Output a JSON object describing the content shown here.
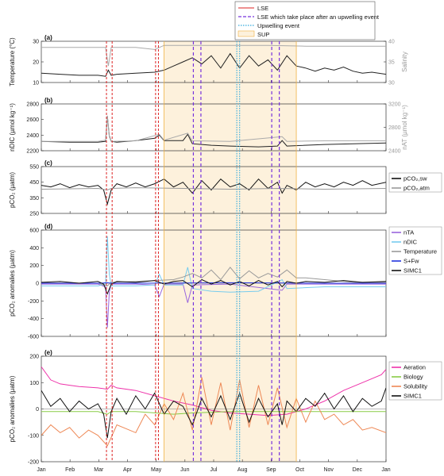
{
  "chart_data": [
    {
      "type": "line",
      "panel_label": "(a)",
      "ylabel": "Temperature (°C)",
      "y2label": "Salinity",
      "ylim": [
        10,
        30
      ],
      "yticks": [
        10,
        20,
        30
      ],
      "y2lim": [
        30,
        40
      ],
      "y2ticks": [
        30,
        35,
        40
      ],
      "series": [
        {
          "axis": "left",
          "color": "#222222",
          "x": [
            0,
            20,
            40,
            60,
            68,
            71,
            74,
            80,
            100,
            120,
            130,
            140,
            150,
            160,
            170,
            180,
            190,
            200,
            210,
            220,
            230,
            240,
            250,
            260,
            270,
            280,
            290,
            300,
            310,
            320,
            330,
            340,
            350,
            365
          ],
          "values": [
            14.5,
            14,
            13.5,
            13.5,
            13,
            16,
            13.5,
            14,
            14.5,
            15,
            16,
            18,
            20,
            22,
            19,
            23,
            17,
            24,
            17,
            23,
            18,
            21,
            16,
            23,
            18,
            17,
            15.5,
            17,
            16,
            17.5,
            15.5,
            14.5,
            15,
            14
          ]
        },
        {
          "axis": "right",
          "color": "#aaaaaa",
          "x": [
            0,
            60,
            68,
            71,
            74,
            100,
            120,
            130,
            150,
            200,
            240,
            280,
            320,
            365
          ],
          "values": [
            38.5,
            38.5,
            38.5,
            34,
            38.5,
            38.5,
            38,
            39,
            39,
            39,
            39,
            38.8,
            38.8,
            38.8
          ]
        }
      ]
    },
    {
      "type": "line",
      "panel_label": "(b)",
      "ylabel": "nDIC (µmol kg⁻¹)",
      "y2label": "nAT (µmol kg⁻¹)",
      "ylim": [
        2200,
        2800
      ],
      "yticks": [
        2200,
        2400,
        2600,
        2800
      ],
      "y2lim": [
        2400,
        3200
      ],
      "y2ticks": [
        2400,
        2800,
        3200
      ],
      "series": [
        {
          "axis": "left",
          "color": "#222222",
          "x": [
            0,
            30,
            60,
            68,
            70,
            72,
            74,
            80,
            100,
            120,
            125,
            130,
            150,
            155,
            160,
            180,
            200,
            230,
            250,
            255,
            260,
            300,
            330,
            365
          ],
          "values": [
            2320,
            2310,
            2310,
            2320,
            2640,
            2390,
            2320,
            2310,
            2330,
            2360,
            2400,
            2330,
            2330,
            2410,
            2290,
            2270,
            2260,
            2250,
            2260,
            2330,
            2260,
            2280,
            2290,
            2300
          ]
        },
        {
          "axis": "right",
          "color": "#aaaaaa",
          "x": [
            0,
            60,
            68,
            70,
            72,
            74,
            100,
            125,
            130,
            155,
            160,
            200,
            255,
            260,
            300,
            365
          ],
          "values": [
            2560,
            2560,
            2580,
            3000,
            2640,
            2560,
            2570,
            2680,
            2580,
            2700,
            2570,
            2560,
            2640,
            2560,
            2570,
            2570
          ]
        }
      ]
    },
    {
      "type": "line",
      "panel_label": "(c)",
      "ylabel": "pCO₂ (µatm)",
      "ylim": [
        250,
        550
      ],
      "yticks": [
        250,
        350,
        450,
        550
      ],
      "legend": [
        "pCO₂,sw",
        "pCO₂,atm"
      ],
      "series": [
        {
          "name": "pCO₂,sw",
          "color": "#111111",
          "x": [
            0,
            10,
            20,
            30,
            40,
            50,
            60,
            66,
            70,
            74,
            80,
            90,
            100,
            110,
            120,
            130,
            140,
            150,
            160,
            170,
            180,
            190,
            200,
            210,
            220,
            230,
            240,
            250,
            255,
            260,
            270,
            280,
            290,
            300,
            310,
            320,
            330,
            340,
            350,
            365
          ],
          "values": [
            430,
            420,
            440,
            415,
            435,
            420,
            430,
            400,
            310,
            400,
            440,
            420,
            445,
            420,
            440,
            470,
            420,
            450,
            380,
            460,
            400,
            470,
            420,
            440,
            400,
            470,
            410,
            450,
            380,
            430,
            400,
            450,
            420,
            440,
            420,
            450,
            430,
            460,
            430,
            450
          ]
        },
        {
          "name": "pCO₂,atm",
          "color": "#999999",
          "x": [
            0,
            60,
            70,
            74,
            100,
            150,
            200,
            250,
            300,
            365
          ],
          "values": [
            405,
            410,
            400,
            410,
            415,
            410,
            405,
            410,
            405,
            410
          ]
        }
      ]
    },
    {
      "type": "line",
      "panel_label": "(d)",
      "ylabel": "pCO₂ anomalies (µatm)",
      "ylim": [
        -600,
        600
      ],
      "yticks": [
        -600,
        -400,
        -200,
        0,
        200,
        400,
        600
      ],
      "legend": [
        "nTA",
        "nDIC",
        "Temperature",
        "S+Fw",
        "SIMC1"
      ],
      "series": [
        {
          "name": "nTA",
          "color": "#9966dd",
          "x": [
            0,
            60,
            68,
            70,
            72,
            74,
            100,
            120,
            125,
            130,
            150,
            155,
            160,
            200,
            255,
            260,
            365
          ],
          "values": [
            -10,
            -10,
            -40,
            -500,
            -100,
            -10,
            -10,
            -20,
            -150,
            -10,
            -10,
            -220,
            -20,
            -10,
            -80,
            -10,
            -10
          ]
        },
        {
          "name": "nDIC",
          "color": "#77ccee",
          "x": [
            0,
            60,
            68,
            70,
            72,
            74,
            100,
            120,
            125,
            130,
            150,
            155,
            160,
            180,
            200,
            230,
            255,
            260,
            300,
            365
          ],
          "values": [
            -30,
            -30,
            -10,
            530,
            100,
            -30,
            -30,
            -20,
            100,
            -20,
            -20,
            180,
            -60,
            -90,
            -100,
            -90,
            40,
            -60,
            -40,
            -40
          ]
        },
        {
          "name": "Temperature",
          "color": "#999999",
          "x": [
            0,
            60,
            70,
            74,
            100,
            140,
            150,
            160,
            170,
            180,
            190,
            200,
            210,
            220,
            230,
            240,
            250,
            260,
            270,
            280,
            300,
            330,
            365
          ],
          "values": [
            5,
            0,
            -30,
            10,
            20,
            40,
            70,
            110,
            60,
            150,
            40,
            180,
            50,
            140,
            60,
            110,
            70,
            150,
            60,
            60,
            40,
            10,
            10
          ]
        },
        {
          "name": "S+Fw",
          "color": "#2233dd",
          "x": [
            0,
            60,
            70,
            74,
            100,
            200,
            300,
            365
          ],
          "values": [
            0,
            0,
            5,
            0,
            0,
            5,
            0,
            0
          ]
        },
        {
          "name": "SIMC1",
          "color": "#111111",
          "x": [
            0,
            20,
            40,
            60,
            66,
            70,
            74,
            80,
            100,
            120,
            130,
            140,
            150,
            160,
            170,
            180,
            190,
            200,
            210,
            220,
            230,
            240,
            250,
            255,
            260,
            270,
            280,
            300,
            320,
            340,
            365
          ],
          "values": [
            10,
            20,
            0,
            20,
            -10,
            -120,
            -10,
            20,
            10,
            30,
            -10,
            20,
            30,
            -40,
            40,
            -10,
            30,
            -20,
            20,
            -30,
            30,
            -20,
            20,
            -40,
            20,
            0,
            20,
            10,
            30,
            10,
            20
          ]
        }
      ]
    },
    {
      "type": "line",
      "panel_label": "(e)",
      "ylabel": "pCO₂ anomalies (µatm)",
      "ylim": [
        -200,
        200
      ],
      "yticks": [
        -200,
        -100,
        0,
        100,
        200
      ],
      "legend": [
        "Aeration",
        "Biology",
        "Solubility",
        "SIMC1"
      ],
      "series": [
        {
          "name": "Aeration",
          "color": "#ee33aa",
          "x": [
            0,
            10,
            20,
            30,
            40,
            60,
            70,
            74,
            80,
            100,
            120,
            140,
            160,
            180,
            200,
            220,
            240,
            260,
            280,
            300,
            320,
            340,
            360,
            365
          ],
          "values": [
            160,
            110,
            95,
            90,
            85,
            80,
            75,
            90,
            80,
            70,
            50,
            30,
            15,
            -5,
            -15,
            -20,
            -25,
            -20,
            0,
            30,
            70,
            100,
            130,
            150
          ]
        },
        {
          "name": "Biology",
          "color": "#88cc44",
          "x": [
            0,
            60,
            70,
            74,
            100,
            140,
            160,
            200,
            260,
            300,
            365
          ],
          "values": [
            -10,
            -10,
            -20,
            -10,
            -10,
            -20,
            -15,
            -10,
            -10,
            -10,
            -10
          ]
        },
        {
          "name": "Solubility",
          "color": "#ee8855",
          "x": [
            0,
            10,
            20,
            30,
            40,
            50,
            60,
            70,
            80,
            100,
            110,
            120,
            130,
            140,
            150,
            160,
            170,
            180,
            190,
            200,
            210,
            220,
            230,
            240,
            250,
            260,
            270,
            280,
            290,
            300,
            310,
            320,
            330,
            340,
            350,
            365
          ],
          "values": [
            -100,
            -60,
            -90,
            -70,
            -110,
            -80,
            -100,
            -140,
            -60,
            -90,
            -20,
            -60,
            20,
            -40,
            60,
            -80,
            120,
            -60,
            100,
            -80,
            110,
            -70,
            90,
            -60,
            80,
            -70,
            40,
            -50,
            30,
            -40,
            -20,
            -60,
            -40,
            -80,
            -70,
            -90
          ]
        },
        {
          "name": "SIMC1",
          "color": "#111111",
          "x": [
            0,
            10,
            20,
            30,
            40,
            50,
            60,
            66,
            70,
            74,
            80,
            90,
            100,
            110,
            120,
            130,
            140,
            150,
            160,
            170,
            180,
            190,
            200,
            210,
            220,
            230,
            240,
            250,
            255,
            260,
            270,
            280,
            290,
            300,
            310,
            320,
            330,
            340,
            350,
            360,
            365
          ],
          "values": [
            70,
            10,
            40,
            -10,
            30,
            0,
            20,
            -20,
            -110,
            -10,
            40,
            -20,
            50,
            0,
            60,
            -20,
            30,
            10,
            -60,
            40,
            -30,
            50,
            -40,
            60,
            -50,
            40,
            -30,
            20,
            -60,
            30,
            -10,
            40,
            10,
            60,
            0,
            50,
            -10,
            40,
            10,
            30,
            80
          ]
        }
      ]
    }
  ],
  "shared": {
    "months": [
      "Jan",
      "Feb",
      "Mar",
      "Apr",
      "May",
      "Jun",
      "Jul",
      "Aug",
      "Sep",
      "Oct",
      "Nov",
      "Dec",
      "Jan"
    ],
    "sup_period": [
      130,
      270
    ],
    "lse_days": [
      69,
      75,
      121,
      124
    ],
    "lse_after_upwelling_days": [
      161,
      169,
      244,
      252
    ],
    "upwelling_days": [
      207,
      210
    ],
    "colors": {
      "lse": "#dd2222",
      "lse_upw": "#7733dd",
      "upwelling": "#33aadd",
      "sup_fill": "#fdf1dc",
      "sup_edge": "#f0b040"
    }
  },
  "legend_top": {
    "lse": "LSE",
    "lse_upw": "LSE which take place after an upwelling event",
    "upwelling": "Upwelling event",
    "sup": "SUP"
  }
}
